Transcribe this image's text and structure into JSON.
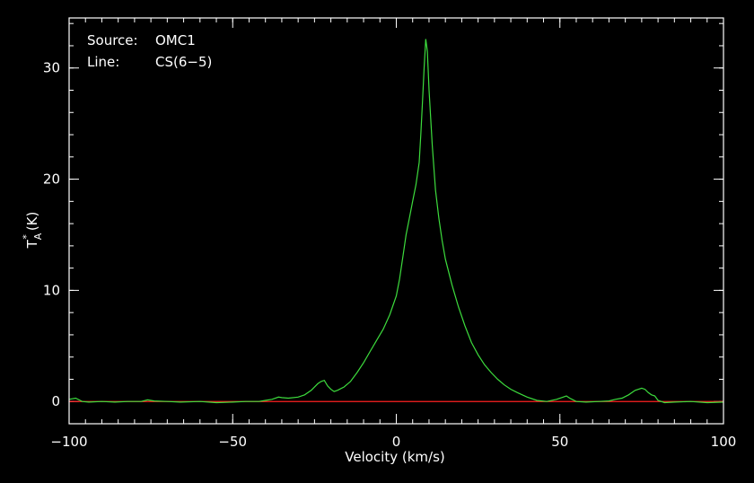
{
  "chart_data": {
    "type": "line",
    "title": "",
    "xlabel": "Velocity (km/s)",
    "ylabel_main": "T",
    "ylabel_sub": "A",
    "ylabel_sup": "*",
    "ylabel_unit": "(K)",
    "xlim": [
      -100,
      100
    ],
    "ylim": [
      -2,
      34.5
    ],
    "x_ticks": [
      -100,
      -50,
      0,
      50,
      100
    ],
    "x_tick_labels": [
      "−100",
      "−50",
      "0",
      "50",
      "100"
    ],
    "y_ticks": [
      0,
      10,
      20,
      30
    ],
    "y_tick_labels": [
      "0",
      "10",
      "20",
      "30"
    ],
    "x_minor_step": 5,
    "y_minor_step": 2,
    "annotations": [
      {
        "label": "Source:",
        "value": "OMC1"
      },
      {
        "label": "Line:",
        "value": "CS(6−5)"
      }
    ],
    "baseline": {
      "y": 0,
      "color": "#ff2020"
    },
    "series": [
      {
        "color": "#3ddc3d",
        "points": [
          [
            -100,
            0.2
          ],
          [
            -98,
            0.3
          ],
          [
            -96,
            0.0
          ],
          [
            -94,
            -0.05
          ],
          [
            -90,
            0.0
          ],
          [
            -86,
            -0.05
          ],
          [
            -82,
            0.0
          ],
          [
            -78,
            0.0
          ],
          [
            -76,
            0.15
          ],
          [
            -74,
            0.05
          ],
          [
            -70,
            0.0
          ],
          [
            -66,
            -0.05
          ],
          [
            -60,
            0.0
          ],
          [
            -55,
            -0.1
          ],
          [
            -50,
            -0.05
          ],
          [
            -46,
            0.0
          ],
          [
            -42,
            0.0
          ],
          [
            -40,
            0.1
          ],
          [
            -38,
            0.2
          ],
          [
            -36,
            0.4
          ],
          [
            -35,
            0.35
          ],
          [
            -33,
            0.3
          ],
          [
            -30,
            0.4
          ],
          [
            -28,
            0.6
          ],
          [
            -26,
            1.0
          ],
          [
            -24,
            1.6
          ],
          [
            -23,
            1.8
          ],
          [
            -22,
            1.9
          ],
          [
            -21,
            1.4
          ],
          [
            -20,
            1.1
          ],
          [
            -19,
            0.9
          ],
          [
            -18,
            1.0
          ],
          [
            -16,
            1.3
          ],
          [
            -14,
            1.8
          ],
          [
            -12,
            2.6
          ],
          [
            -10,
            3.5
          ],
          [
            -8,
            4.5
          ],
          [
            -6,
            5.5
          ],
          [
            -4,
            6.5
          ],
          [
            -2,
            7.8
          ],
          [
            0,
            9.5
          ],
          [
            1,
            11.0
          ],
          [
            2,
            13.0
          ],
          [
            3,
            15.0
          ],
          [
            4,
            16.5
          ],
          [
            5,
            18.0
          ],
          [
            6,
            19.5
          ],
          [
            7,
            21.5
          ],
          [
            7.5,
            24.0
          ],
          [
            8,
            27.0
          ],
          [
            8.5,
            30.0
          ],
          [
            9,
            32.6
          ],
          [
            9.5,
            31.5
          ],
          [
            10,
            28.0
          ],
          [
            11,
            23.0
          ],
          [
            12,
            19.0
          ],
          [
            13,
            16.5
          ],
          [
            14,
            14.5
          ],
          [
            15,
            12.8
          ],
          [
            17,
            10.5
          ],
          [
            19,
            8.5
          ],
          [
            21,
            6.8
          ],
          [
            23,
            5.3
          ],
          [
            25,
            4.2
          ],
          [
            27,
            3.3
          ],
          [
            29,
            2.6
          ],
          [
            31,
            2.0
          ],
          [
            33,
            1.5
          ],
          [
            35,
            1.1
          ],
          [
            37,
            0.8
          ],
          [
            40,
            0.4
          ],
          [
            43,
            0.1
          ],
          [
            46,
            0.0
          ],
          [
            49,
            0.2
          ],
          [
            51,
            0.4
          ],
          [
            52,
            0.5
          ],
          [
            53,
            0.3
          ],
          [
            55,
            0.0
          ],
          [
            58,
            -0.05
          ],
          [
            62,
            0.0
          ],
          [
            65,
            0.05
          ],
          [
            67,
            0.2
          ],
          [
            69,
            0.3
          ],
          [
            71,
            0.6
          ],
          [
            73,
            1.0
          ],
          [
            75,
            1.2
          ],
          [
            76,
            1.1
          ],
          [
            77,
            0.8
          ],
          [
            78,
            0.6
          ],
          [
            79,
            0.5
          ],
          [
            80,
            0.1
          ],
          [
            82,
            -0.1
          ],
          [
            85,
            -0.05
          ],
          [
            90,
            0.0
          ],
          [
            95,
            -0.1
          ],
          [
            100,
            -0.05
          ]
        ]
      }
    ]
  }
}
